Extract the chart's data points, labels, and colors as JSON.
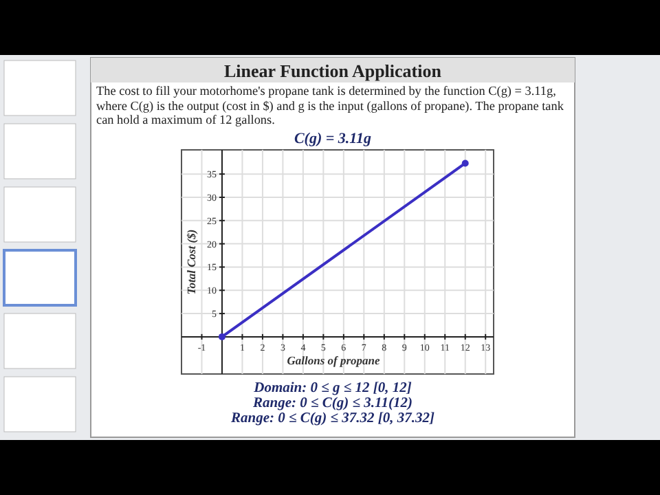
{
  "chart_data": {
    "type": "line",
    "title": "Linear Function Application",
    "subtitle": "C(g) = 3.11g",
    "xlabel": "Gallons of propane",
    "ylabel": "Total Cost ($)",
    "annotations": [
      "The cost to fill your motorhome's propane tank is determined by the function C(g) = 3.11g, where C(g) is the output (cost in $) and g is the input (gallons of propane). The propane tank can hold a maximum of 12 gallons.",
      "Domain:  0 ≤ g ≤ 12      [0, 12]",
      "Range:  0 ≤ C(g) ≤ 3.11(12)",
      "Range:  0 ≤ C(g) ≤ 37.32   [0, 37.32]"
    ],
    "series": [
      {
        "color": "#3b2fc4",
        "x": [
          0,
          12
        ],
        "values": [
          0,
          37.32
        ]
      }
    ],
    "xlim": [
      -2,
      13.4
    ],
    "ylim": [
      -8,
      40.2
    ],
    "xticks": [
      -1,
      {
        "value": 0,
        "label": null
      },
      1,
      2,
      3,
      4,
      5,
      6,
      7,
      8,
      9,
      10,
      11,
      12,
      13
    ],
    "yticks": [
      {
        "value": 0,
        "label": null
      },
      5,
      10,
      15,
      20,
      25,
      30,
      35
    ],
    "grid": true,
    "marker": "circle",
    "line_style": "solid"
  }
}
